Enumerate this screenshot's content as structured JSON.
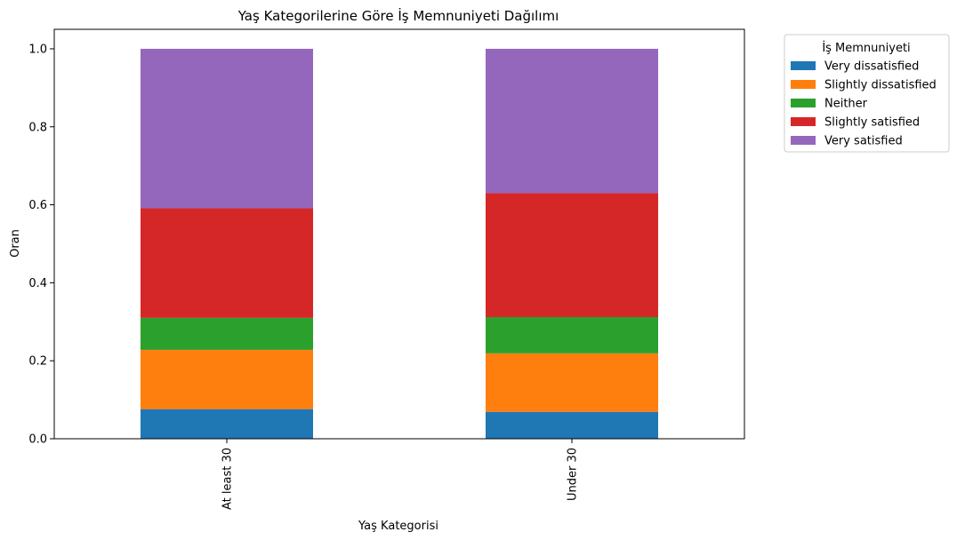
{
  "chart_data": {
    "type": "bar",
    "stacked": true,
    "title": "Yaş Kategorilerine Göre İş Memnuniyeti Dağılımı",
    "xlabel": "Yaş Kategorisi",
    "ylabel": "Oran",
    "categories": [
      "At least 30",
      "Under 30"
    ],
    "ylim": [
      0,
      1.05
    ],
    "yticks": [
      "0.0",
      "0.2",
      "0.4",
      "0.6",
      "0.8",
      "1.0"
    ],
    "grid": false,
    "legend": {
      "title": "İş Memnuniyeti",
      "placement": "outside-top-right"
    },
    "series": [
      {
        "name": "Very dissatisfied",
        "color": "#1f77b4",
        "values": [
          0.076,
          0.069
        ]
      },
      {
        "name": "Slightly dissatisfied",
        "color": "#ff7f0e",
        "values": [
          0.152,
          0.15
        ]
      },
      {
        "name": "Neither",
        "color": "#2ca02c",
        "values": [
          0.082,
          0.093
        ]
      },
      {
        "name": "Slightly satisfied",
        "color": "#d62728",
        "values": [
          0.281,
          0.318
        ]
      },
      {
        "name": "Very satisfied",
        "color": "#9467bd",
        "values": [
          0.409,
          0.37
        ]
      }
    ]
  }
}
